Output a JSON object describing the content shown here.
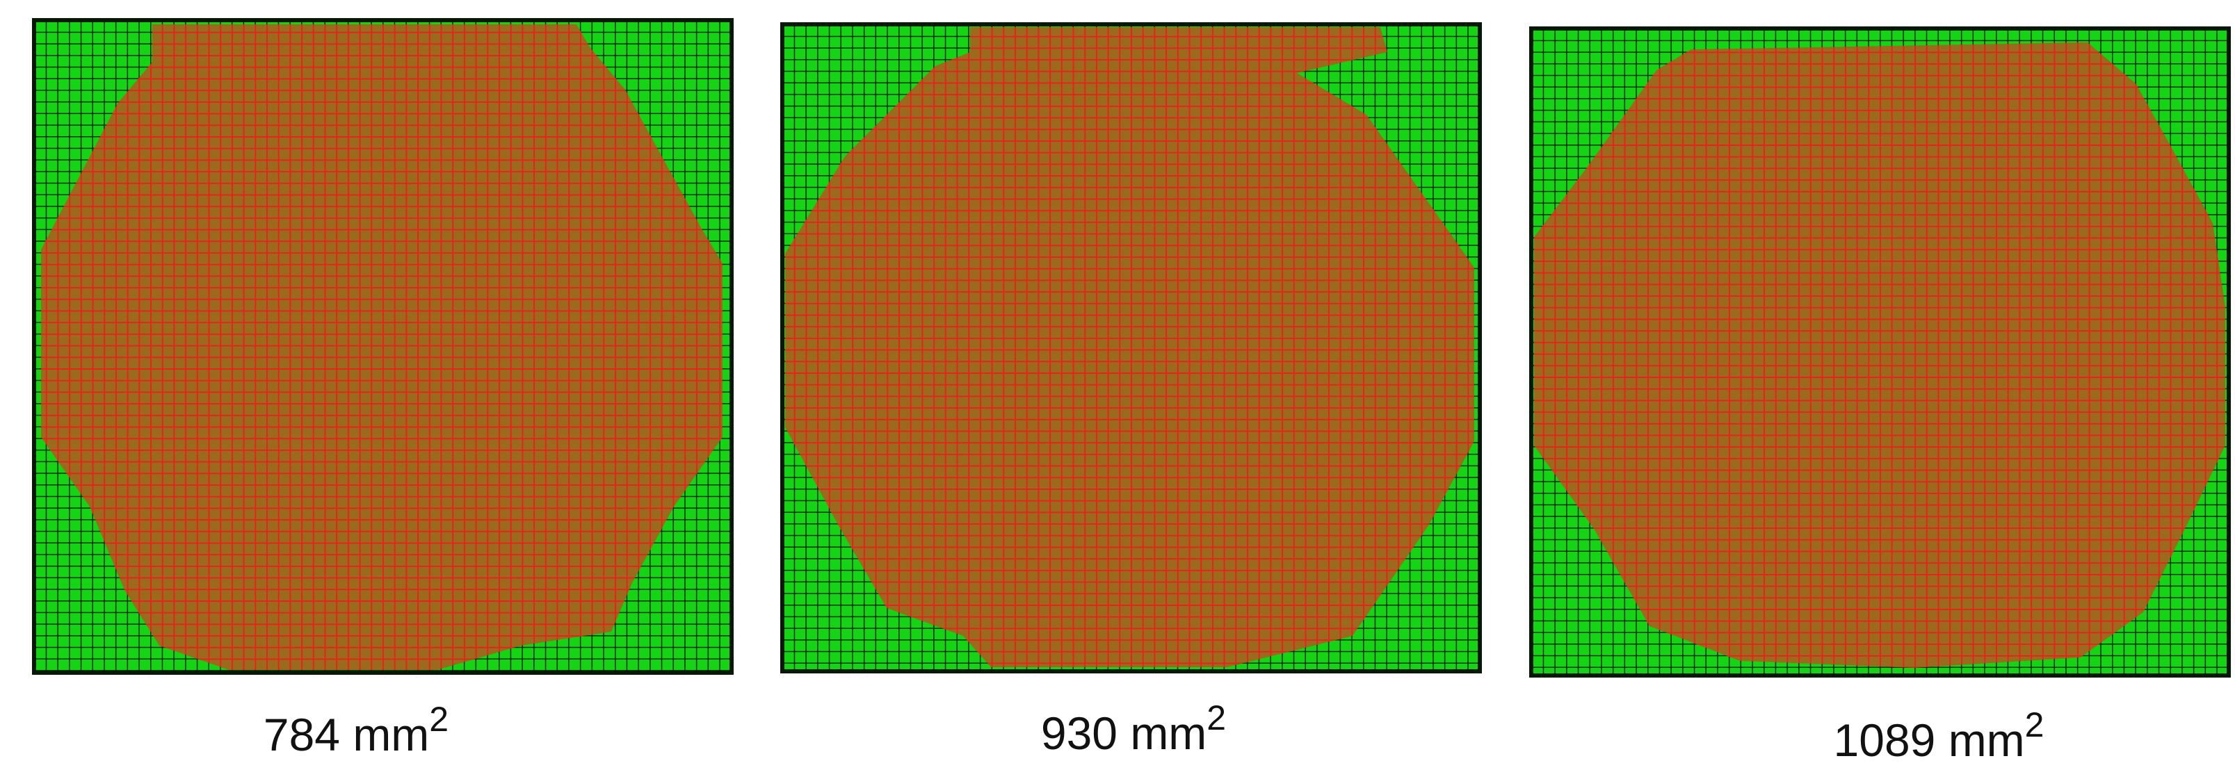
{
  "panels": [
    {
      "label": {
        "text": "784 mm",
        "sup": "2"
      }
    },
    {
      "label": {
        "text": "930 mm",
        "sup": "2"
      }
    },
    {
      "label": {
        "text": "1089 mm",
        "sup": "2"
      }
    }
  ]
}
